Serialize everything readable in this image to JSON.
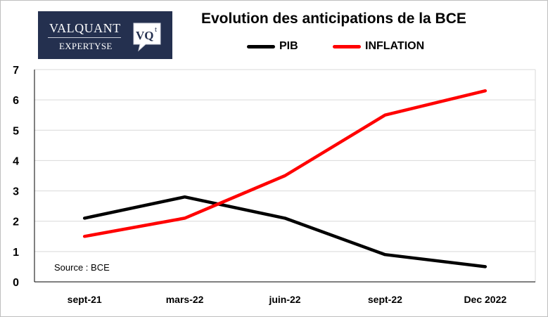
{
  "logo": {
    "line1": "VALQUANT",
    "line2": "EXPERTYSE",
    "badge_text": "VQ",
    "badge_mark": "t",
    "background": "#24304f"
  },
  "chart_data": {
    "type": "line",
    "title": "Evolution des anticipations de la BCE",
    "categories": [
      "sept-21",
      "mars-22",
      "juin-22",
      "sept-22",
      "Dec 2022"
    ],
    "series": [
      {
        "name": "PIB",
        "color": "#000000",
        "values": [
          2.1,
          2.8,
          2.1,
          0.9,
          0.5
        ]
      },
      {
        "name": "INFLATION",
        "color": "#ff0000",
        "values": [
          1.5,
          2.1,
          3.5,
          5.5,
          6.3
        ]
      }
    ],
    "ylim": [
      0,
      7
    ],
    "yticks": [
      0,
      1,
      2,
      3,
      4,
      5,
      6,
      7
    ],
    "xlabel": "",
    "ylabel": "",
    "grid": true,
    "legend": "top",
    "annotation": "Source : BCE"
  }
}
